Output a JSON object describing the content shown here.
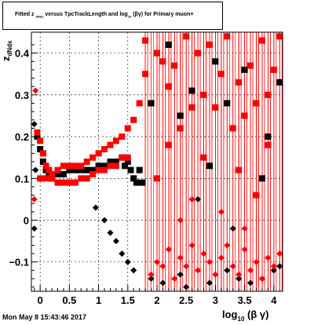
{
  "title": {
    "prefix": "Fitted z",
    "sub1": "dNdx",
    "middle": "versus TpcTrackLength and log",
    "sub2": "10",
    "suffix": "(βγ) for Primary muon+"
  },
  "datestamp": "Mon May  8 15:43:46 2017",
  "colors": {
    "black_series": "#000000",
    "red_series": "#ff0000",
    "grid": "#000000",
    "frame": "#000000"
  },
  "chart_data": {
    "type": "scatter",
    "title": "Fitted z_dNdx versus TpcTrackLength and log_10(βγ) for Primary muon+",
    "xlabel": "log_10 (β γ)",
    "ylabel": "z_dNdx",
    "xlim": [
      -0.15,
      4.15
    ],
    "ylim": [
      -0.17,
      0.45
    ],
    "grid": true,
    "x_ticks": [
      0,
      0.5,
      1,
      1.5,
      2,
      2.5,
      3,
      3.5,
      4
    ],
    "x_tick_labels": [
      "0",
      "0.5",
      "1",
      "1.5",
      "2",
      "2.5",
      "3",
      "3.5",
      "4"
    ],
    "y_ticks": [
      -0.1,
      0,
      0.1,
      0.2,
      0.3,
      0.4
    ],
    "y_tick_labels": [
      "−0.1",
      "0",
      "0.1",
      "0.2",
      "0.3",
      "0.4"
    ],
    "series": [
      {
        "color": "black",
        "points": [
          [
            -0.1,
            0.23
          ],
          [
            -0.08,
            0.12
          ],
          [
            -0.05,
            0.2
          ],
          [
            0,
            0.17
          ],
          [
            0.05,
            0.14
          ],
          [
            0.1,
            0.12
          ],
          [
            0.15,
            0.11
          ],
          [
            0.2,
            0.1
          ],
          [
            0.3,
            0.11
          ],
          [
            0.4,
            0.11
          ],
          [
            0.5,
            0.12
          ],
          [
            0.6,
            0.12
          ],
          [
            0.7,
            0.12
          ],
          [
            0.8,
            0.12
          ],
          [
            0.9,
            0.12
          ],
          [
            1.0,
            0.13
          ],
          [
            1.1,
            0.13
          ],
          [
            1.2,
            0.14
          ],
          [
            1.3,
            0.14
          ],
          [
            1.4,
            0.15
          ],
          [
            1.45,
            0.13
          ],
          [
            1.5,
            0.14
          ],
          [
            1.55,
            0.12
          ],
          [
            1.6,
            0.1
          ],
          [
            1.65,
            0.09
          ],
          [
            1.7,
            0.12
          ],
          [
            1.75,
            0.09
          ],
          [
            -0.1,
            -0.02
          ],
          [
            0.95,
            0.03
          ],
          [
            1.1,
            0.0
          ],
          [
            1.2,
            -0.03
          ],
          [
            1.3,
            -0.05
          ],
          [
            1.4,
            -0.08
          ],
          [
            1.5,
            -0.1
          ],
          [
            1.6,
            -0.12
          ],
          [
            1.9,
            -0.14
          ],
          [
            2.1,
            -0.15
          ],
          [
            2.4,
            -0.13
          ],
          [
            2.5,
            -0.16
          ],
          [
            2.9,
            -0.15
          ],
          [
            3.2,
            -0.12
          ],
          [
            3.4,
            -0.14
          ],
          [
            3.6,
            -0.15
          ],
          [
            3.8,
            -0.14
          ],
          [
            4.0,
            -0.12
          ],
          [
            4.1,
            -0.11
          ],
          [
            2.4,
            0.25
          ],
          [
            2.6,
            0.31
          ],
          [
            2.9,
            0.13
          ],
          [
            3.2,
            0.28
          ],
          [
            3.5,
            0.36
          ],
          [
            3.8,
            0.1
          ],
          [
            4.1,
            0.33
          ],
          [
            1.9,
            0.28
          ],
          [
            2.2,
            0.42
          ],
          [
            3.0,
            0.38
          ],
          [
            2.7,
            0.05
          ],
          [
            3.3,
            -0.02
          ],
          [
            3.9,
            0.2
          ]
        ]
      },
      {
        "color": "red",
        "points": [
          [
            -0.1,
            0.05
          ],
          [
            -0.08,
            0.31
          ],
          [
            -0.05,
            0.21
          ],
          [
            0,
            0.19
          ],
          [
            0.05,
            0.16
          ],
          [
            0.1,
            0.13
          ],
          [
            0.15,
            0.12
          ],
          [
            0.2,
            0.11
          ],
          [
            0.3,
            0.12
          ],
          [
            0.4,
            0.13
          ],
          [
            0.5,
            0.13
          ],
          [
            0.6,
            0.13
          ],
          [
            0.7,
            0.13
          ],
          [
            0.8,
            0.14
          ],
          [
            0.9,
            0.15
          ],
          [
            1.0,
            0.16
          ],
          [
            1.1,
            0.17
          ],
          [
            1.2,
            0.18
          ],
          [
            1.3,
            0.19
          ],
          [
            1.4,
            0.2
          ],
          [
            1.5,
            0.22
          ],
          [
            1.6,
            0.24
          ],
          [
            1.7,
            0.28
          ],
          [
            1.8,
            0.35
          ],
          [
            0,
            0.1
          ],
          [
            0.1,
            0.1
          ],
          [
            0.2,
            0.1
          ],
          [
            0.3,
            0.09
          ],
          [
            0.4,
            0.09
          ],
          [
            0.5,
            0.09
          ],
          [
            0.6,
            0.09
          ],
          [
            0.7,
            0.1
          ],
          [
            0.8,
            0.1
          ],
          [
            0.9,
            0.11
          ],
          [
            1.0,
            0.12
          ],
          [
            1.1,
            0.12
          ],
          [
            1.2,
            0.13
          ],
          [
            1.3,
            0.13
          ],
          [
            1.4,
            0.15
          ],
          [
            1.5,
            0.15
          ],
          [
            1.8,
            0.43
          ],
          [
            2.0,
            0.4
          ],
          [
            2.1,
            0.38
          ],
          [
            2.2,
            0.32
          ],
          [
            2.3,
            0.37
          ],
          [
            2.4,
            0.22
          ],
          [
            2.5,
            0.44
          ],
          [
            2.6,
            0.27
          ],
          [
            2.7,
            0.4
          ],
          [
            2.8,
            0.3
          ],
          [
            2.9,
            0.42
          ],
          [
            3.0,
            0.27
          ],
          [
            3.1,
            0.35
          ],
          [
            3.2,
            0.44
          ],
          [
            3.3,
            0.22
          ],
          [
            3.4,
            0.33
          ],
          [
            3.5,
            0.25
          ],
          [
            3.6,
            0.37
          ],
          [
            3.7,
            0.28
          ],
          [
            3.8,
            0.43
          ],
          [
            3.9,
            0.3
          ],
          [
            4.0,
            0.36
          ],
          [
            4.1,
            0.44
          ],
          [
            1.9,
            -0.13
          ],
          [
            2.0,
            -0.1
          ],
          [
            2.1,
            -0.11
          ],
          [
            2.2,
            -0.07
          ],
          [
            2.3,
            -0.14
          ],
          [
            2.4,
            -0.09
          ],
          [
            2.5,
            -0.11
          ],
          [
            2.6,
            -0.06
          ],
          [
            2.7,
            -0.12
          ],
          [
            2.8,
            -0.08
          ],
          [
            2.9,
            -0.1
          ],
          [
            3.0,
            -0.13
          ],
          [
            3.1,
            -0.09
          ],
          [
            3.2,
            -0.06
          ],
          [
            3.3,
            -0.11
          ],
          [
            3.4,
            -0.13
          ],
          [
            3.5,
            -0.07
          ],
          [
            3.6,
            -0.12
          ],
          [
            3.7,
            -0.1
          ],
          [
            3.8,
            -0.14
          ],
          [
            3.9,
            -0.09
          ],
          [
            4.0,
            -0.11
          ],
          [
            4.1,
            -0.08
          ],
          [
            2.0,
            0.1
          ],
          [
            2.2,
            0.18
          ],
          [
            2.6,
            0.05
          ],
          [
            2.8,
            0.15
          ],
          [
            3.1,
            0.02
          ],
          [
            3.4,
            0.12
          ],
          [
            3.7,
            0.06
          ],
          [
            3.9,
            0.18
          ],
          [
            2.4,
            0.0
          ],
          [
            3.5,
            -0.02
          ]
        ]
      }
    ],
    "error_bars": "vertical error bars on red points spanning roughly the full y range for x above 1.8"
  }
}
